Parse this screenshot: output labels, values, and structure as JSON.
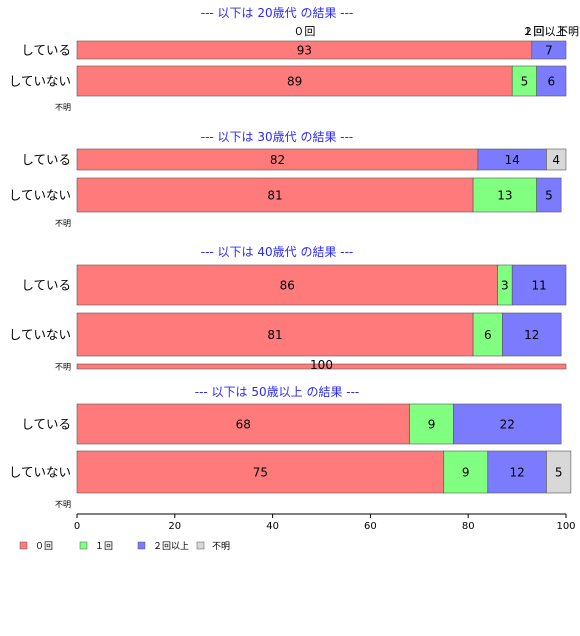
{
  "chart_data": {
    "type": "bar",
    "orientation": "horizontal",
    "stacked": true,
    "xlim": [
      0,
      100
    ],
    "xticks": [
      0,
      20,
      40,
      60,
      80,
      100
    ],
    "column_headers": [
      "０回",
      "１回",
      "２回以上",
      "不明"
    ],
    "legend": [
      {
        "name": "０回",
        "color": "#ff7b7b"
      },
      {
        "name": "１回",
        "color": "#80ff80"
      },
      {
        "name": "２回以上",
        "color": "#7b7bff"
      },
      {
        "name": "不明",
        "color": "#d8d8d8"
      }
    ],
    "panels": [
      {
        "title": "--- 以下は 20歳代 の結果 ---",
        "rows": [
          {
            "label": "している",
            "values": [
              93,
              0,
              7,
              0
            ]
          },
          {
            "label": "していない",
            "values": [
              89,
              5,
              6,
              0
            ]
          },
          {
            "label": "不明",
            "values": [
              0,
              0,
              0,
              0
            ]
          }
        ]
      },
      {
        "title": "--- 以下は 30歳代 の結果 ---",
        "rows": [
          {
            "label": "している",
            "values": [
              82,
              0,
              14,
              4
            ]
          },
          {
            "label": "していない",
            "values": [
              81,
              13,
              5,
              0
            ]
          },
          {
            "label": "不明",
            "values": [
              0,
              0,
              0,
              0
            ]
          }
        ]
      },
      {
        "title": "--- 以下は 40歳代 の結果 ---",
        "rows": [
          {
            "label": "している",
            "values": [
              86,
              3,
              11,
              0
            ]
          },
          {
            "label": "していない",
            "values": [
              81,
              6,
              12,
              0
            ]
          },
          {
            "label": "不明",
            "values": [
              100,
              0,
              0,
              0
            ]
          }
        ]
      },
      {
        "title": "--- 以下は 50歳以上 の結果 ---",
        "rows": [
          {
            "label": "している",
            "values": [
              68,
              9,
              22,
              0
            ]
          },
          {
            "label": "していない",
            "values": [
              75,
              9,
              12,
              5
            ]
          },
          {
            "label": "不明",
            "values": [
              0,
              0,
              0,
              0
            ]
          }
        ]
      }
    ]
  }
}
